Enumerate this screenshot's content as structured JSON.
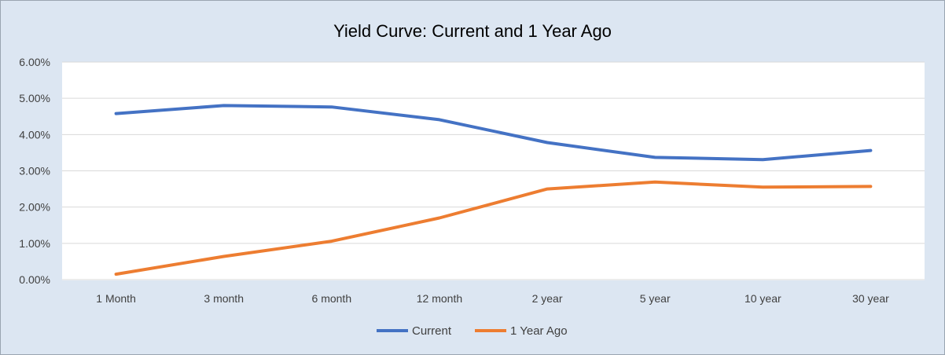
{
  "chart_data": {
    "type": "line",
    "title": "Yield Curve: Current and 1 Year Ago",
    "xlabel": "",
    "ylabel": "",
    "categories": [
      "1 Month",
      "3 month",
      "6 month",
      "12 month",
      "2 year",
      "5 year",
      "10 year",
      "30 year"
    ],
    "yticks": [
      "0.00%",
      "1.00%",
      "2.00%",
      "3.00%",
      "4.00%",
      "5.00%",
      "6.00%"
    ],
    "ylim": [
      0,
      6
    ],
    "grid": true,
    "legend_position": "bottom",
    "series": [
      {
        "name": "Current",
        "color": "#4472c4",
        "values": [
          4.58,
          4.8,
          4.76,
          4.41,
          3.78,
          3.37,
          3.31,
          3.56
        ]
      },
      {
        "name": "1 Year Ago",
        "color": "#ed7d31",
        "values": [
          0.15,
          0.64,
          1.06,
          1.7,
          2.5,
          2.69,
          2.55,
          2.57
        ]
      }
    ],
    "colors": {
      "background": "#dce6f2",
      "plot_area": "#ffffff",
      "gridline": "#d9d9d9"
    }
  }
}
